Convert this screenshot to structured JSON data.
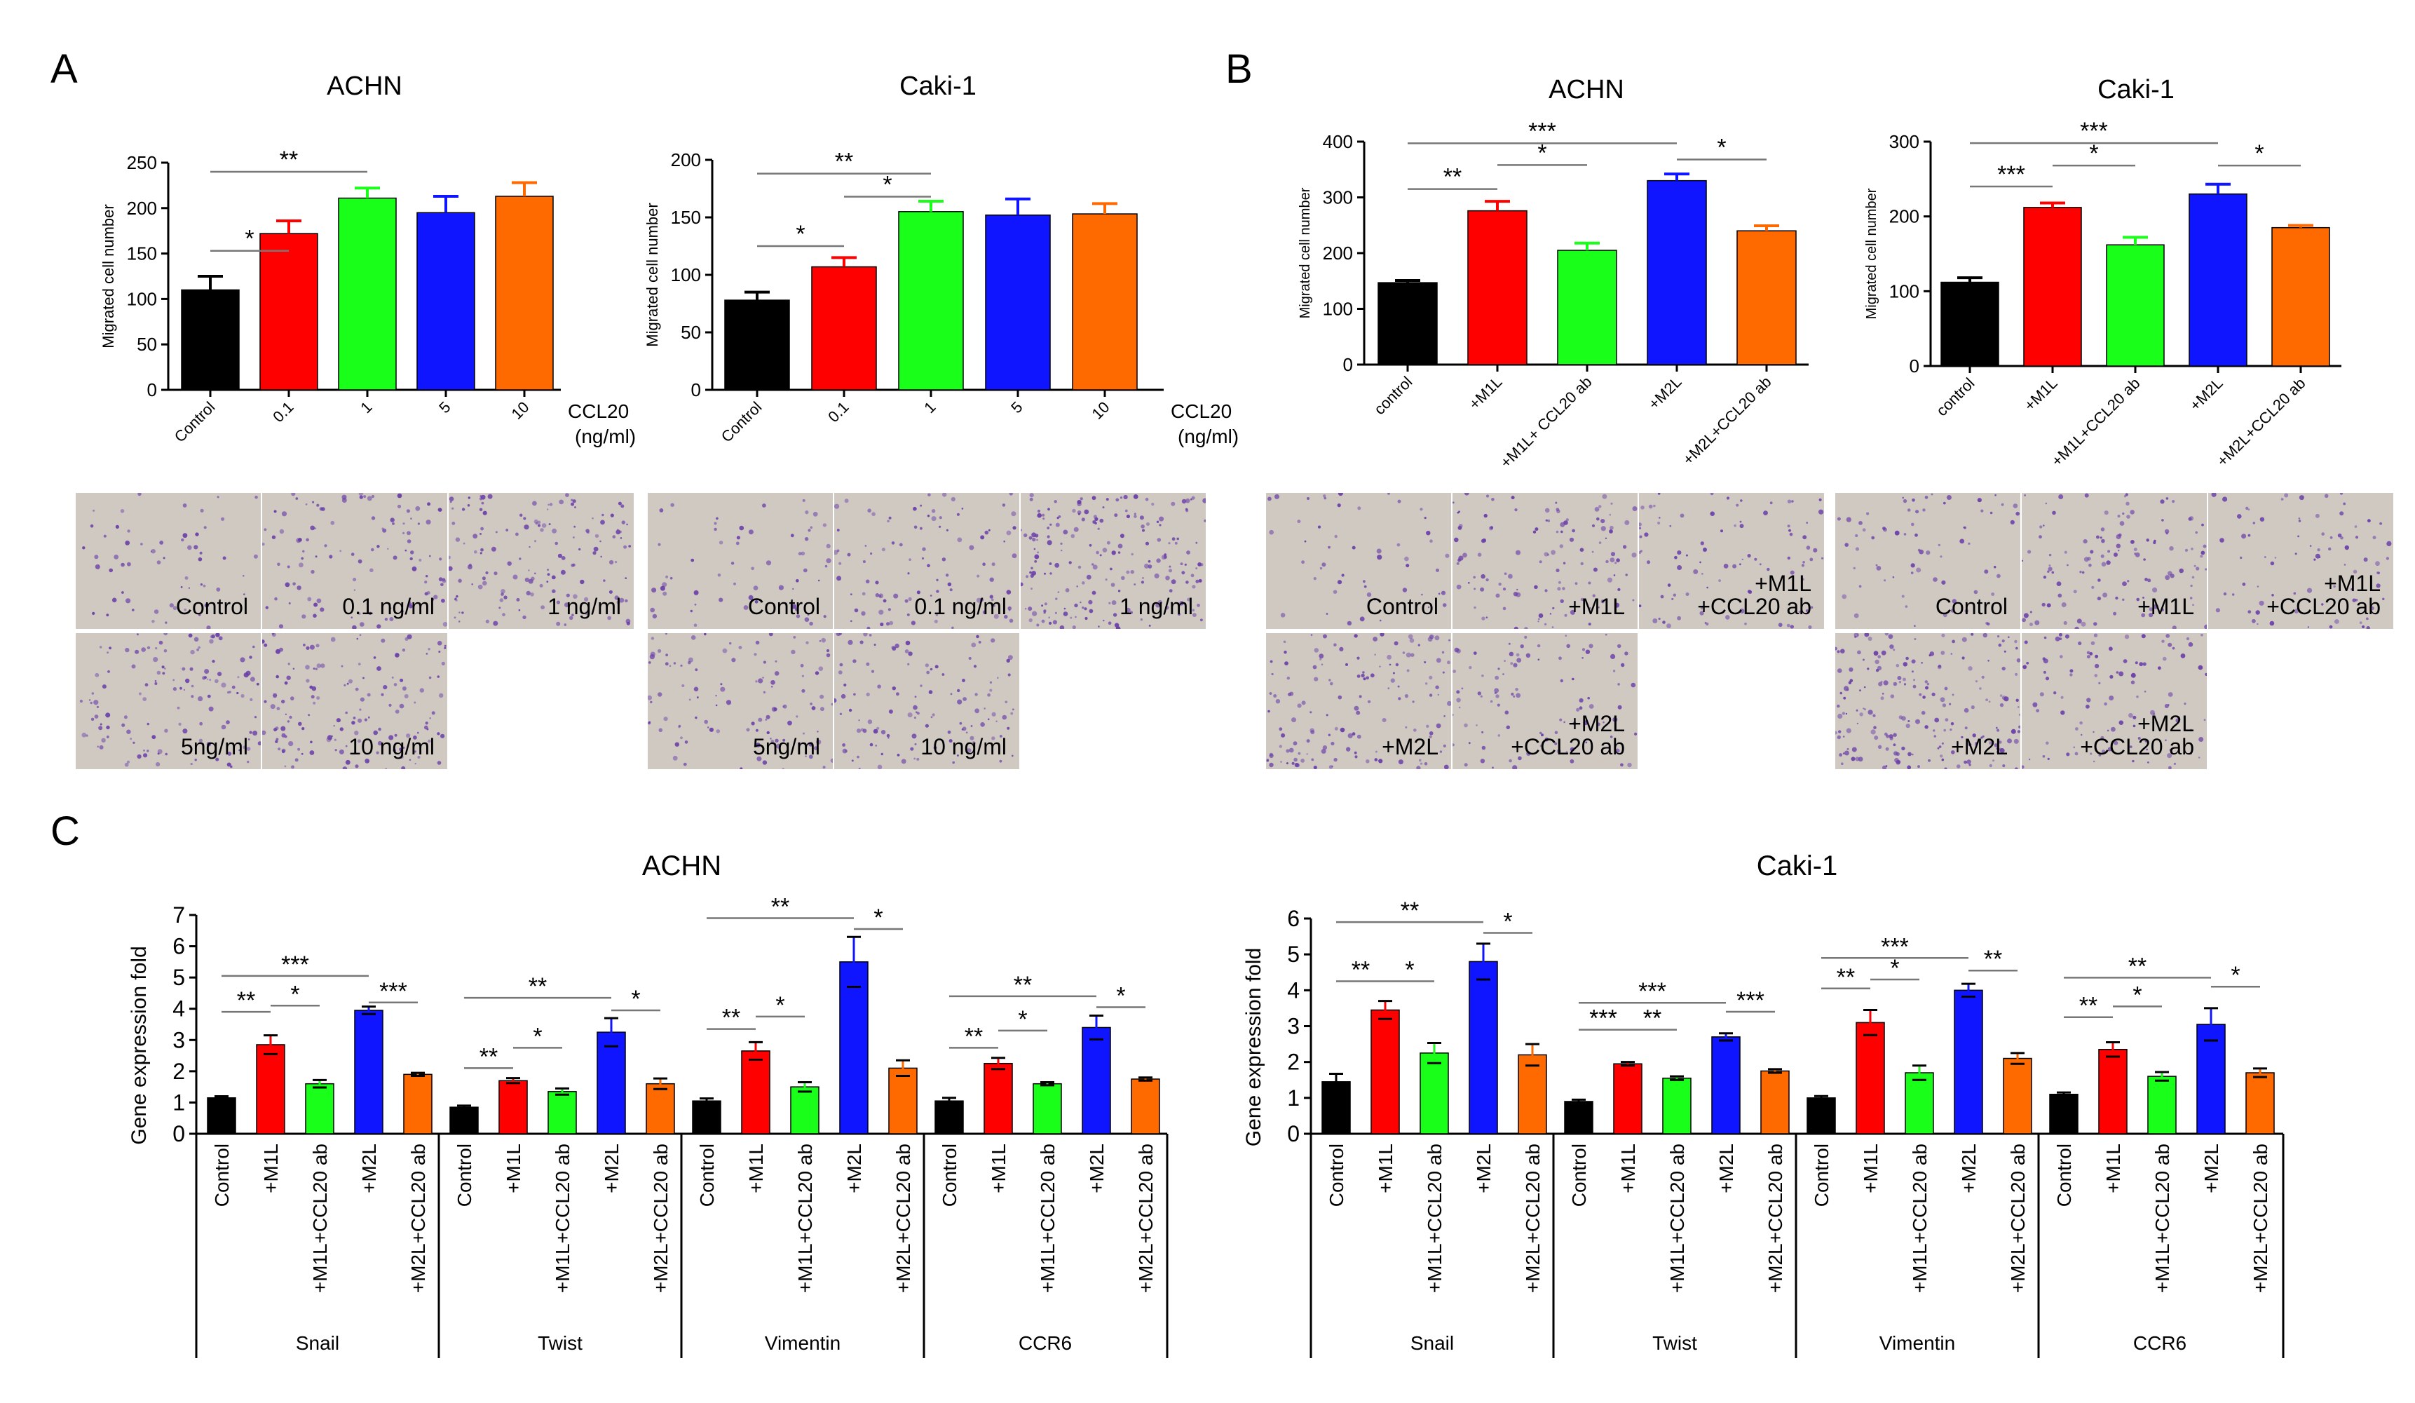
{
  "panel_letters": [
    "A",
    "B",
    "C"
  ],
  "colors": {
    "black": "#000000",
    "red": "#ff0000",
    "green": "#19ff19",
    "blue": "#0f16ff",
    "orange": "#ff6a00",
    "stain": "#6a3fa8",
    "micro_bg": "#cfc9c2"
  },
  "chart_data": [
    {
      "id": "A-ACHN",
      "type": "bar",
      "title": "ACHN",
      "ylabel": "Migrated cell number",
      "ylim": [
        0,
        250
      ],
      "yticks": [
        0,
        50,
        100,
        150,
        200,
        250
      ],
      "categories": [
        "Control",
        "0.1",
        "1",
        "5",
        "10"
      ],
      "values": [
        110,
        172,
        211,
        195,
        213
      ],
      "errors": [
        15,
        14,
        11,
        18,
        15
      ],
      "colors": [
        "#000000",
        "#ff0000",
        "#19ff19",
        "#0f16ff",
        "#ff6a00"
      ],
      "unit_label": [
        "CCL20",
        "(ng/ml)"
      ],
      "significance": [
        {
          "from": 0,
          "to": 1,
          "label": "*",
          "y": 153
        },
        {
          "from": 0,
          "to": 2,
          "label": "**",
          "y": 240
        }
      ]
    },
    {
      "id": "A-Caki",
      "type": "bar",
      "title": "Caki-1",
      "ylabel": "Migrated cell number",
      "ylim": [
        0,
        200
      ],
      "yticks": [
        0,
        50,
        100,
        150,
        200
      ],
      "categories": [
        "Control",
        "0.1",
        "1",
        "5",
        "10"
      ],
      "values": [
        78,
        107,
        155,
        152,
        153
      ],
      "errors": [
        7,
        8,
        9,
        14,
        9
      ],
      "colors": [
        "#000000",
        "#ff0000",
        "#19ff19",
        "#0f16ff",
        "#ff6a00"
      ],
      "unit_label": [
        "CCL20",
        "(ng/ml)"
      ],
      "significance": [
        {
          "from": 0,
          "to": 1,
          "label": "*",
          "y": 125
        },
        {
          "from": 1,
          "to": 2,
          "label": "*",
          "y": 168
        },
        {
          "from": 0,
          "to": 2,
          "label": "**",
          "y": 188
        }
      ]
    },
    {
      "id": "B-ACHN",
      "type": "bar",
      "title": "ACHN",
      "ylabel": "Migrated cell number",
      "ylim": [
        0,
        400
      ],
      "yticks": [
        0,
        100,
        200,
        300,
        400
      ],
      "categories": [
        "control",
        "+M1L",
        "+M1L+ CCL20 ab",
        "+M2L",
        "+M2L+CCL20 ab"
      ],
      "values": [
        147,
        276,
        205,
        330,
        240
      ],
      "errors": [
        4,
        17,
        13,
        12,
        9
      ],
      "colors": [
        "#000000",
        "#ff0000",
        "#19ff19",
        "#0f16ff",
        "#ff6a00"
      ],
      "significance": [
        {
          "from": 0,
          "to": 1,
          "label": "**",
          "y": 315
        },
        {
          "from": 1,
          "to": 2,
          "label": "*",
          "y": 358
        },
        {
          "from": 0,
          "to": 3,
          "label": "***",
          "y": 397
        },
        {
          "from": 3,
          "to": 4,
          "label": "*",
          "y": 368
        }
      ]
    },
    {
      "id": "B-Caki",
      "type": "bar",
      "title": "Caki-1",
      "ylabel": "Migrated cell number",
      "ylim": [
        0,
        300
      ],
      "yticks": [
        0,
        100,
        200,
        300
      ],
      "categories": [
        "control",
        "+M1L",
        "+M1L+CCL20 ab",
        "+M2L",
        "+M2L+CCL20 ab"
      ],
      "values": [
        112,
        212,
        162,
        230,
        185
      ],
      "errors": [
        6,
        6,
        10,
        13,
        3
      ],
      "colors": [
        "#000000",
        "#ff0000",
        "#19ff19",
        "#0f16ff",
        "#ff6a00"
      ],
      "significance": [
        {
          "from": 0,
          "to": 1,
          "label": "***",
          "y": 240
        },
        {
          "from": 1,
          "to": 2,
          "label": "*",
          "y": 268
        },
        {
          "from": 0,
          "to": 3,
          "label": "***",
          "y": 298
        },
        {
          "from": 3,
          "to": 4,
          "label": "*",
          "y": 268
        }
      ]
    },
    {
      "id": "C-ACHN",
      "type": "bar",
      "title": "ACHN",
      "ylabel": "Gene expression fold",
      "ylim": [
        0,
        7
      ],
      "yticks": [
        0,
        1,
        2,
        3,
        4,
        5,
        6,
        7
      ],
      "groups": [
        "Snail",
        "Twist",
        "Vimentin",
        "CCR6"
      ],
      "categories": [
        "Control",
        "+M1L",
        "+M1L+CCL20 ab",
        "+M2L",
        "+M2L+CCL20 ab"
      ],
      "series": [
        {
          "group": "Snail",
          "values": [
            1.15,
            2.85,
            1.6,
            3.95,
            1.9
          ],
          "errors": [
            0.05,
            0.3,
            0.12,
            0.12,
            0.05
          ]
        },
        {
          "group": "Twist",
          "values": [
            0.85,
            1.7,
            1.35,
            3.25,
            1.6
          ],
          "errors": [
            0.05,
            0.08,
            0.1,
            0.45,
            0.17
          ]
        },
        {
          "group": "Vimentin",
          "values": [
            1.05,
            2.65,
            1.5,
            5.5,
            2.1
          ],
          "errors": [
            0.08,
            0.28,
            0.15,
            0.8,
            0.25
          ]
        },
        {
          "group": "CCR6",
          "values": [
            1.05,
            2.25,
            1.6,
            3.4,
            1.75
          ],
          "errors": [
            0.1,
            0.18,
            0.05,
            0.38,
            0.05
          ]
        }
      ],
      "colors": [
        "#000000",
        "#ff0000",
        "#19ff19",
        "#0f16ff",
        "#ff6a00"
      ],
      "significance": [
        {
          "group": 0,
          "from": 0,
          "to": 1,
          "label": "**",
          "y": 3.9
        },
        {
          "group": 0,
          "from": 1,
          "to": 2,
          "label": "*",
          "y": 4.1
        },
        {
          "group": 0,
          "from": 0,
          "to": 3,
          "label": "***",
          "y": 5.05
        },
        {
          "group": 0,
          "from": 3,
          "to": 4,
          "label": "***",
          "y": 4.2
        },
        {
          "group": 1,
          "from": 0,
          "to": 1,
          "label": "**",
          "y": 2.1
        },
        {
          "group": 1,
          "from": 1,
          "to": 2,
          "label": "*",
          "y": 2.75
        },
        {
          "group": 1,
          "from": 0,
          "to": 3,
          "label": "**",
          "y": 4.35
        },
        {
          "group": 1,
          "from": 3,
          "to": 4,
          "label": "*",
          "y": 3.95
        },
        {
          "group": 2,
          "from": 0,
          "to": 1,
          "label": "**",
          "y": 3.35
        },
        {
          "group": 2,
          "from": 1,
          "to": 2,
          "label": "*",
          "y": 3.75
        },
        {
          "group": 2,
          "from": 0,
          "to": 3,
          "label": "**",
          "y": 6.9
        },
        {
          "group": 2,
          "from": 3,
          "to": 4,
          "label": "*",
          "y": 6.55
        },
        {
          "group": 3,
          "from": 0,
          "to": 1,
          "label": "**",
          "y": 2.75
        },
        {
          "group": 3,
          "from": 1,
          "to": 2,
          "label": "*",
          "y": 3.3
        },
        {
          "group": 3,
          "from": 0,
          "to": 3,
          "label": "**",
          "y": 4.4
        },
        {
          "group": 3,
          "from": 3,
          "to": 4,
          "label": "*",
          "y": 4.05
        }
      ]
    },
    {
      "id": "C-Caki",
      "type": "bar",
      "title": "Caki-1",
      "ylabel": "Gene expression fold",
      "ylim": [
        0,
        6
      ],
      "yticks": [
        0,
        1,
        2,
        3,
        4,
        5,
        6
      ],
      "groups": [
        "Snail",
        "Twist",
        "Vimentin",
        "CCR6"
      ],
      "categories": [
        "Control",
        "+M1L",
        "+M1L+CCL20 ab",
        "+M2L",
        "+M2L+CCL20 ab"
      ],
      "series": [
        {
          "group": "Snail",
          "values": [
            1.45,
            3.45,
            2.25,
            4.8,
            2.2
          ],
          "errors": [
            0.22,
            0.25,
            0.28,
            0.5,
            0.3
          ]
        },
        {
          "group": "Twist",
          "values": [
            0.9,
            1.95,
            1.55,
            2.7,
            1.75
          ],
          "errors": [
            0.05,
            0.05,
            0.05,
            0.1,
            0.05
          ]
        },
        {
          "group": "Vimentin",
          "values": [
            1.0,
            3.1,
            1.7,
            4.0,
            2.1
          ],
          "errors": [
            0.05,
            0.35,
            0.2,
            0.18,
            0.15
          ]
        },
        {
          "group": "CCR6",
          "values": [
            1.1,
            2.35,
            1.6,
            3.05,
            1.7
          ],
          "errors": [
            0.05,
            0.2,
            0.12,
            0.45,
            0.12
          ]
        }
      ],
      "colors": [
        "#000000",
        "#ff0000",
        "#19ff19",
        "#0f16ff",
        "#ff6a00"
      ],
      "significance": [
        {
          "group": 0,
          "from": 0,
          "to": 1,
          "label": "**",
          "y": 4.25
        },
        {
          "group": 0,
          "from": 1,
          "to": 2,
          "label": "*",
          "y": 4.25
        },
        {
          "group": 0,
          "from": 0,
          "to": 3,
          "label": "**",
          "y": 5.9
        },
        {
          "group": 0,
          "from": 3,
          "to": 4,
          "label": "*",
          "y": 5.6
        },
        {
          "group": 1,
          "from": 0,
          "to": 1,
          "label": "***",
          "y": 2.9
        },
        {
          "group": 1,
          "from": 1,
          "to": 2,
          "label": "**",
          "y": 2.9
        },
        {
          "group": 1,
          "from": 0,
          "to": 3,
          "label": "***",
          "y": 3.65
        },
        {
          "group": 1,
          "from": 3,
          "to": 4,
          "label": "***",
          "y": 3.4
        },
        {
          "group": 2,
          "from": 0,
          "to": 1,
          "label": "**",
          "y": 4.05
        },
        {
          "group": 2,
          "from": 1,
          "to": 2,
          "label": "*",
          "y": 4.3
        },
        {
          "group": 2,
          "from": 0,
          "to": 3,
          "label": "***",
          "y": 4.9
        },
        {
          "group": 2,
          "from": 3,
          "to": 4,
          "label": "**",
          "y": 4.55
        },
        {
          "group": 3,
          "from": 0,
          "to": 1,
          "label": "**",
          "y": 3.25
        },
        {
          "group": 3,
          "from": 1,
          "to": 2,
          "label": "*",
          "y": 3.55
        },
        {
          "group": 3,
          "from": 0,
          "to": 3,
          "label": "**",
          "y": 4.35
        },
        {
          "group": 3,
          "from": 3,
          "to": 4,
          "label": "*",
          "y": 4.1
        }
      ]
    }
  ],
  "micrographs": [
    {
      "id": "A-ACHN",
      "labels": [
        "Control",
        "0.1 ng/ml",
        "1 ng/ml",
        "5ng/ml",
        "10 ng/ml"
      ],
      "density": [
        60,
        110,
        150,
        130,
        150
      ]
    },
    {
      "id": "A-Caki",
      "labels": [
        "Control",
        "0.1 ng/ml",
        "1 ng/ml",
        "5ng/ml",
        "10 ng/ml"
      ],
      "density": [
        60,
        100,
        200,
        110,
        120
      ]
    },
    {
      "id": "B-ACHN",
      "labels": [
        "Control",
        "+M1L",
        "+M1L\n+CCL20 ab",
        "+M2L",
        "+M2L\n+CCL20 ab"
      ],
      "density": [
        50,
        120,
        90,
        140,
        100
      ]
    },
    {
      "id": "B-Caki",
      "labels": [
        "Control",
        "+M1L",
        "+M1L\n+CCL20 ab",
        "+M2L",
        "+M2L\n+CCL20 ab"
      ],
      "density": [
        70,
        120,
        80,
        200,
        110
      ]
    }
  ]
}
